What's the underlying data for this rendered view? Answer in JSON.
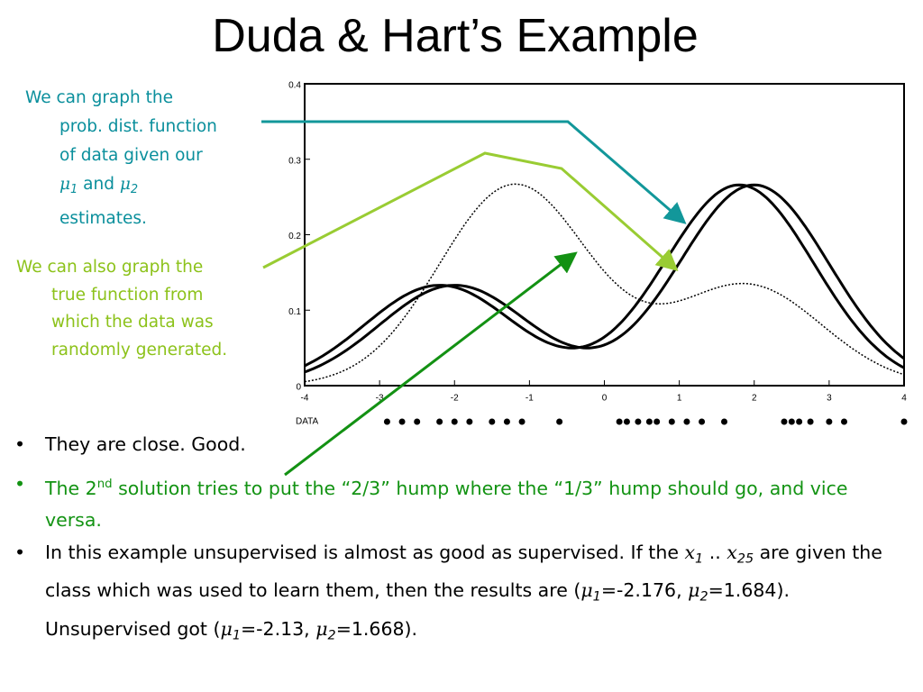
{
  "header": {
    "title": "Duda & Hart’s Example"
  },
  "note_1": [
    "We can graph the",
    "prob. dist. function",
    "of data given our",
    "μ",
    "1",
    "and",
    "μ",
    "2",
    "estimates."
  ],
  "note_2": [
    "We can also graph the",
    "true function from",
    "which the data was",
    "randomly generated."
  ],
  "figure": {
    "yticks": [
      0.4,
      0.3,
      0.2,
      0.1,
      0
    ],
    "xticks": [
      -4,
      -3,
      -2,
      -1,
      0,
      1,
      2,
      3,
      4
    ],
    "data_label": "DATA"
  },
  "bullets": [
    [
      "They are close.  Good."
    ],
    [
      "The 2",
      "nd",
      " solution tries to put the “2/3” hump where the “1/3” hump should go, and vice versa."
    ],
    [
      "In this example unsupervised is almost as good as supervised.  If the ",
      "x",
      "1",
      " .. ",
      "x",
      "25",
      " are given the class which was used to learn them, then the results are (",
      "μ",
      "1",
      "=-2.176, ",
      "μ",
      "2",
      "=1.684).  Unsupervised got (",
      "μ",
      "1",
      "=-2.13, ",
      "μ",
      "2",
      "=1.668)."
    ]
  ]
}
